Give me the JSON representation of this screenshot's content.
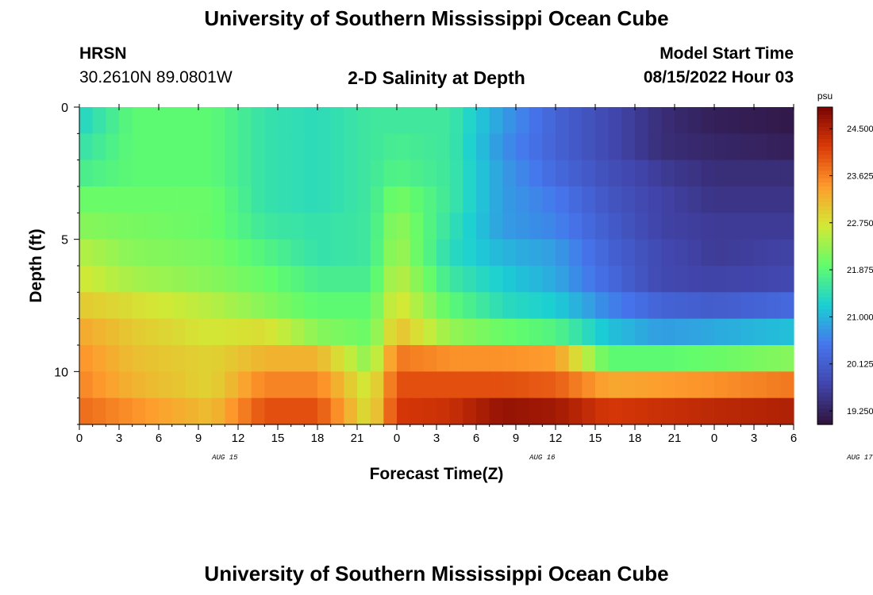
{
  "page": {
    "title": "University of Southern Mississippi Ocean Cube",
    "bottom_title": "University of Southern Mississippi Ocean Cube",
    "station": "HRSN",
    "coords": "30.2610N  89.0801W",
    "plot_title": "2-D Salinity at Depth",
    "model_start_label": "Model Start Time",
    "model_start_value": "08/15/2022 Hour 03"
  },
  "chart_data": {
    "type": "heatmap",
    "title": "2-D Salinity at Depth",
    "xlabel": "Forecast Time(Z)",
    "ylabel": "Depth (ft)",
    "x_ticks": [
      "0",
      "3",
      "6",
      "9",
      "12",
      "15",
      "18",
      "21",
      "0",
      "3",
      "6",
      "9",
      "12",
      "15",
      "18",
      "21",
      "0",
      "3",
      "6"
    ],
    "date_labels": [
      {
        "label": "AUG 15",
        "hour_index": 11
      },
      {
        "label": "AUG 16",
        "hour_index": 35
      },
      {
        "label": "AUG 17",
        "hour_index": 59
      }
    ],
    "x_hours": 54,
    "y_ticks": [
      0,
      5,
      10
    ],
    "ylim": [
      0,
      12
    ],
    "units": "psu",
    "colorbar_ticks": [
      "24.500",
      "23.625",
      "22.750",
      "21.875",
      "21.000",
      "20.125",
      "19.250"
    ],
    "vmin": 19.0,
    "vmax": 24.9,
    "colors": [
      "#30123b",
      "#4145ab",
      "#4675ed",
      "#1bcfd4",
      "#61fc6c",
      "#d2e935",
      "#fe9b2d",
      "#db3a07",
      "#7a0403"
    ],
    "depth_layers": [
      0.5,
      1.5,
      2.5,
      3.5,
      4.5,
      5.5,
      6.5,
      7.5,
      8.5,
      9.5,
      10.5,
      11.5
    ],
    "time_keys": [
      0,
      4,
      10,
      14,
      18,
      22,
      24,
      28,
      32,
      36,
      40,
      44,
      48,
      54
    ],
    "salinity_profiles": [
      [
        21.3,
        21.9,
        21.9,
        21.5,
        21.4,
        21.6,
        21.6,
        21.6,
        20.8,
        20.2,
        19.8,
        19.4,
        19.2,
        19.1
      ],
      [
        21.5,
        21.9,
        21.9,
        21.5,
        21.4,
        21.6,
        21.7,
        21.6,
        20.7,
        20.2,
        19.8,
        19.4,
        19.3,
        19.2
      ],
      [
        21.7,
        21.9,
        21.9,
        21.5,
        21.4,
        21.6,
        21.8,
        21.6,
        20.8,
        20.3,
        19.9,
        19.6,
        19.4,
        19.4
      ],
      [
        22.0,
        22.0,
        22.0,
        21.5,
        21.4,
        21.6,
        22.1,
        21.6,
        20.8,
        20.5,
        20.0,
        19.7,
        19.5,
        19.5
      ],
      [
        22.2,
        22.1,
        22.0,
        21.6,
        21.5,
        21.6,
        22.3,
        21.5,
        20.8,
        20.6,
        20.1,
        19.7,
        19.6,
        19.6
      ],
      [
        22.5,
        22.2,
        22.1,
        21.8,
        21.5,
        21.6,
        22.4,
        21.4,
        21.0,
        20.8,
        20.2,
        19.8,
        19.6,
        19.7
      ],
      [
        22.7,
        22.4,
        22.2,
        22.0,
        21.7,
        21.7,
        22.6,
        21.6,
        21.2,
        20.9,
        20.3,
        19.8,
        19.7,
        19.8
      ],
      [
        23.0,
        22.8,
        22.5,
        22.2,
        21.9,
        21.9,
        22.8,
        21.9,
        21.4,
        21.2,
        20.6,
        20.2,
        20.1,
        20.3
      ],
      [
        23.3,
        23.0,
        22.7,
        22.8,
        22.2,
        22.0,
        23.1,
        22.3,
        22.0,
        21.8,
        21.1,
        20.8,
        20.9,
        21.1
      ],
      [
        23.5,
        23.1,
        22.9,
        23.2,
        23.2,
        22.2,
        23.7,
        23.5,
        23.5,
        23.4,
        21.9,
        21.9,
        22.0,
        22.2
      ],
      [
        23.6,
        23.2,
        22.9,
        23.6,
        23.6,
        22.6,
        24.0,
        24.0,
        24.0,
        23.9,
        23.3,
        23.4,
        23.5,
        23.7
      ],
      [
        23.8,
        23.5,
        23.1,
        24.0,
        24.0,
        22.7,
        24.2,
        24.3,
        24.7,
        24.6,
        24.2,
        24.3,
        24.4,
        24.5
      ]
    ]
  }
}
